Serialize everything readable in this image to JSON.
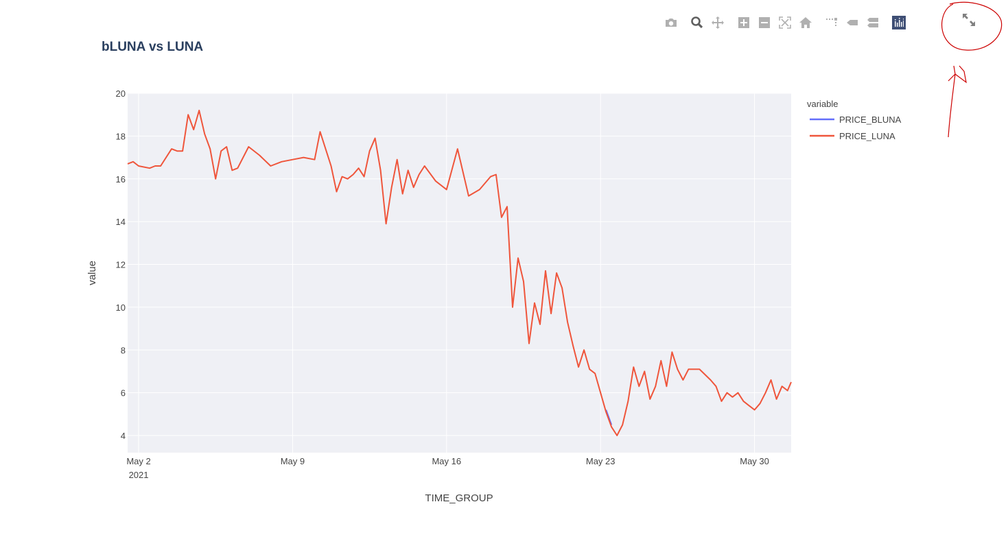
{
  "modebar": {
    "icons": [
      "camera-icon",
      "zoom-icon",
      "pan-icon",
      "zoom-in-icon",
      "zoom-out-icon",
      "autoscale-icon",
      "reset-axes-icon",
      "spike-lines-icon",
      "hover-closest-icon",
      "hover-compare-icon",
      "plotly-logo-icon"
    ],
    "icon_color": "#b0b0b0",
    "active_color": "#606060",
    "logo_color": "#3f4f75"
  },
  "expand_button": {
    "icon": "expand-icon",
    "color": "#808080"
  },
  "annotation": {
    "color": "#cc0000"
  },
  "chart_data": {
    "type": "line",
    "title": "bLUNA vs LUNA",
    "xlabel": "TIME_GROUP",
    "ylabel": "value",
    "x_range": [
      "2021-05-01T12:00",
      "2021-05-31T16:00"
    ],
    "ylim": [
      3.2,
      20.0
    ],
    "y_ticks": [
      4,
      6,
      8,
      10,
      12,
      14,
      16,
      18,
      20
    ],
    "x_ticks": [
      {
        "label": "May 2",
        "sublabel": "2021",
        "date": "2021-05-02"
      },
      {
        "label": "May 9",
        "sublabel": "",
        "date": "2021-05-09"
      },
      {
        "label": "May 16",
        "sublabel": "",
        "date": "2021-05-16"
      },
      {
        "label": "May 23",
        "sublabel": "",
        "date": "2021-05-23"
      },
      {
        "label": "May 30",
        "sublabel": "",
        "date": "2021-05-30"
      }
    ],
    "grid": true,
    "plot_bgcolor": "#eff0f5",
    "legend": {
      "title": "variable",
      "placement": "right",
      "entries": [
        "PRICE_BLUNA",
        "PRICE_LUNA"
      ]
    },
    "series": [
      {
        "name": "PRICE_BLUNA",
        "color": "#636efa",
        "x": [
          "2021-05-23T06:00",
          "2021-05-23T12:00"
        ],
        "y": [
          5.2,
          4.5
        ]
      },
      {
        "name": "PRICE_LUNA",
        "color": "#ef553b",
        "x": [
          "2021-05-01T12:00",
          "2021-05-01T18:00",
          "2021-05-02T00:00",
          "2021-05-02T12:00",
          "2021-05-02T18:00",
          "2021-05-03T00:00",
          "2021-05-03T12:00",
          "2021-05-03T18:00",
          "2021-05-04T00:00",
          "2021-05-04T06:00",
          "2021-05-04T12:00",
          "2021-05-04T18:00",
          "2021-05-05T00:00",
          "2021-05-05T06:00",
          "2021-05-05T12:00",
          "2021-05-05T18:00",
          "2021-05-06T00:00",
          "2021-05-06T06:00",
          "2021-05-06T12:00",
          "2021-05-07T00:00",
          "2021-05-07T12:00",
          "2021-05-08T00:00",
          "2021-05-08T12:00",
          "2021-05-09T00:00",
          "2021-05-09T12:00",
          "2021-05-10T00:00",
          "2021-05-10T06:00",
          "2021-05-10T12:00",
          "2021-05-10T18:00",
          "2021-05-11T00:00",
          "2021-05-11T06:00",
          "2021-05-11T12:00",
          "2021-05-11T18:00",
          "2021-05-12T00:00",
          "2021-05-12T06:00",
          "2021-05-12T12:00",
          "2021-05-12T18:00",
          "2021-05-13T00:00",
          "2021-05-13T06:00",
          "2021-05-13T12:00",
          "2021-05-13T18:00",
          "2021-05-14T00:00",
          "2021-05-14T06:00",
          "2021-05-14T12:00",
          "2021-05-14T18:00",
          "2021-05-15T00:00",
          "2021-05-15T12:00",
          "2021-05-16T00:00",
          "2021-05-16T12:00",
          "2021-05-17T00:00",
          "2021-05-17T12:00",
          "2021-05-18T00:00",
          "2021-05-18T06:00",
          "2021-05-18T12:00",
          "2021-05-18T18:00",
          "2021-05-19T00:00",
          "2021-05-19T06:00",
          "2021-05-19T12:00",
          "2021-05-19T18:00",
          "2021-05-20T00:00",
          "2021-05-20T06:00",
          "2021-05-20T12:00",
          "2021-05-20T18:00",
          "2021-05-21T00:00",
          "2021-05-21T06:00",
          "2021-05-21T12:00",
          "2021-05-21T18:00",
          "2021-05-22T00:00",
          "2021-05-22T06:00",
          "2021-05-22T12:00",
          "2021-05-22T18:00",
          "2021-05-23T00:00",
          "2021-05-23T06:00",
          "2021-05-23T12:00",
          "2021-05-23T18:00",
          "2021-05-24T00:00",
          "2021-05-24T06:00",
          "2021-05-24T12:00",
          "2021-05-24T18:00",
          "2021-05-25T00:00",
          "2021-05-25T06:00",
          "2021-05-25T12:00",
          "2021-05-25T18:00",
          "2021-05-26T00:00",
          "2021-05-26T06:00",
          "2021-05-26T12:00",
          "2021-05-26T18:00",
          "2021-05-27T00:00",
          "2021-05-27T12:00",
          "2021-05-28T00:00",
          "2021-05-28T06:00",
          "2021-05-28T12:00",
          "2021-05-28T18:00",
          "2021-05-29T00:00",
          "2021-05-29T06:00",
          "2021-05-29T12:00",
          "2021-05-29T18:00",
          "2021-05-30T00:00",
          "2021-05-30T06:00",
          "2021-05-30T12:00",
          "2021-05-30T18:00",
          "2021-05-31T00:00",
          "2021-05-31T06:00",
          "2021-05-31T12:00",
          "2021-05-31T16:00"
        ],
        "y": [
          16.7,
          16.8,
          16.6,
          16.5,
          16.6,
          16.6,
          17.4,
          17.3,
          17.3,
          19.0,
          18.3,
          19.2,
          18.1,
          17.4,
          16.0,
          17.3,
          17.5,
          16.4,
          16.5,
          17.5,
          17.1,
          16.6,
          16.8,
          16.9,
          17.0,
          16.9,
          18.2,
          17.4,
          16.6,
          15.4,
          16.1,
          16.0,
          16.2,
          16.5,
          16.1,
          17.3,
          17.9,
          16.4,
          13.9,
          15.6,
          16.9,
          15.3,
          16.4,
          15.6,
          16.2,
          16.6,
          15.9,
          15.5,
          17.4,
          15.2,
          15.5,
          16.1,
          16.2,
          14.2,
          14.7,
          10.0,
          12.3,
          11.2,
          8.3,
          10.2,
          9.2,
          11.7,
          9.7,
          11.6,
          10.9,
          9.3,
          8.2,
          7.2,
          8.0,
          7.1,
          6.9,
          6.0,
          5.1,
          4.4,
          4.0,
          4.5,
          5.6,
          7.2,
          6.3,
          7.0,
          5.7,
          6.3,
          7.5,
          6.3,
          7.9,
          7.1,
          6.6,
          7.1,
          7.1,
          6.6,
          6.3,
          5.6,
          6.0,
          5.8,
          6.0,
          5.6,
          5.4,
          5.2,
          5.5,
          6.0,
          6.6,
          5.7,
          6.3,
          6.1,
          6.5
        ]
      }
    ]
  }
}
